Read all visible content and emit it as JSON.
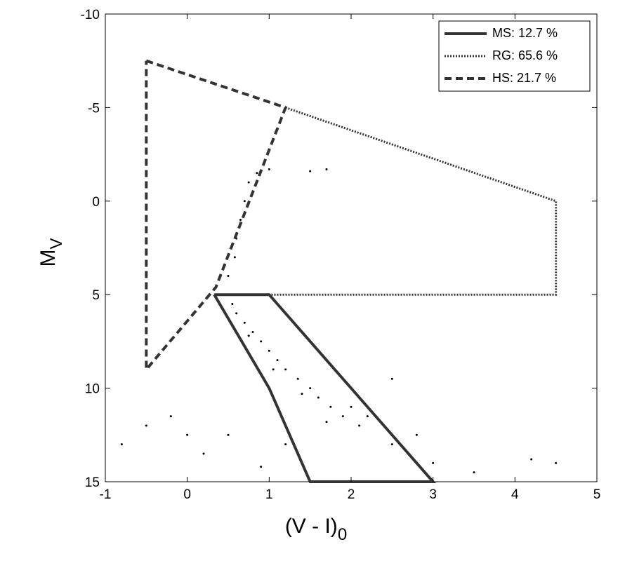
{
  "chart_data": {
    "type": "scatter",
    "xlabel": {
      "text": "(V - I)",
      "subscript": "0"
    },
    "ylabel": {
      "text": "M",
      "subscript": "V"
    },
    "xlim": [
      -1,
      5
    ],
    "ylim": [
      15,
      -10
    ],
    "xticks": [
      -1,
      0,
      1,
      2,
      3,
      4,
      5
    ],
    "yticks": [
      -10,
      -5,
      0,
      5,
      10,
      15
    ],
    "points": {
      "color": "#000000",
      "x": [
        0.5,
        0.52,
        0.55,
        0.6,
        0.7,
        0.8,
        0.9,
        1.0,
        1.1,
        1.2,
        1.35,
        1.5,
        1.6,
        1.75,
        1.9,
        2.0,
        2.1,
        2.2,
        1.7,
        1.4,
        1.05,
        0.75,
        0.58,
        0.6,
        0.65,
        0.7,
        0.75,
        0.85,
        1.0,
        1.5,
        1.7,
        -0.5,
        0.0,
        0.5,
        -0.8,
        0.2,
        1.2,
        2.5,
        3.0,
        4.5,
        2.5,
        2.8,
        3.5,
        4.2,
        -0.2,
        0.9
      ],
      "y": [
        4.0,
        5.0,
        5.5,
        6.0,
        6.5,
        7.0,
        7.5,
        8.0,
        8.5,
        9.0,
        9.5,
        10.0,
        10.5,
        11.0,
        11.5,
        11.0,
        12.0,
        11.5,
        11.8,
        10.3,
        9.0,
        7.2,
        3.0,
        2.0,
        1.0,
        0.0,
        -1.0,
        -1.5,
        -1.7,
        -1.6,
        -1.7,
        12.0,
        12.5,
        12.5,
        13.0,
        13.5,
        13.0,
        13.0,
        14.0,
        14.0,
        9.5,
        12.5,
        14.5,
        13.8,
        11.5,
        14.2
      ]
    },
    "series": [
      {
        "name": "MS: 12.7 %",
        "color": "#333333",
        "style": "solid",
        "x": [
          0.33,
          1,
          3,
          1.5,
          1,
          0.33
        ],
        "y": [
          5,
          5,
          15,
          15,
          10,
          5
        ]
      },
      {
        "name": "RG: 65.6 %",
        "color": "#333333",
        "style": "dotted",
        "x": [
          1.2,
          4.5,
          4.5,
          1
        ],
        "y": [
          -5,
          0,
          5,
          5
        ]
      },
      {
        "name": "HS: 21.7 %",
        "color": "#333333",
        "style": "dashed",
        "x": [
          -0.5,
          1.2,
          0.35,
          -0.5,
          -0.5
        ],
        "y": [
          -7.5,
          -5,
          4.6,
          9,
          -7.5
        ]
      }
    ],
    "legend": "upper right"
  }
}
